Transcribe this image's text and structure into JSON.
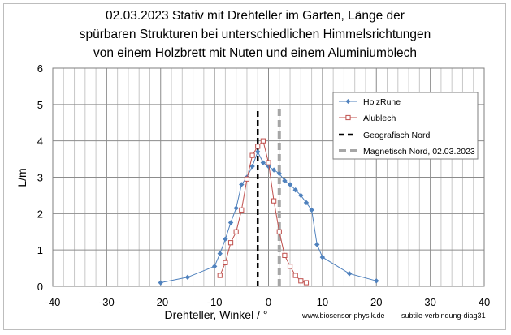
{
  "chart_data": {
    "type": "scatter",
    "title": [
      "02.03.2023  Stativ mit Drehteller im Garten, Länge der",
      "spürbaren Strukturen bei unterschiedlichen Himmelsrichtungen",
      "von einem Holzbrett mit Nuten und einem Aluminiumblech"
    ],
    "xlabel": "Drehteller, Winkel / °",
    "ylabel": "L/m",
    "xlim": [
      -40,
      40
    ],
    "ylim": [
      0,
      6
    ],
    "x_ticks": [
      -40,
      -30,
      -20,
      -10,
      0,
      10,
      20,
      30,
      40
    ],
    "y_ticks": [
      0,
      1,
      2,
      3,
      4,
      5,
      6
    ],
    "grid": true,
    "legend_position": "top-right",
    "series": [
      {
        "name": "HolzRune",
        "color": "#4f81bd",
        "marker": "diamond",
        "points": [
          [
            -20,
            0.1
          ],
          [
            -15,
            0.25
          ],
          [
            -10,
            0.55
          ],
          [
            -9,
            0.9
          ],
          [
            -8,
            1.3
          ],
          [
            -7,
            1.75
          ],
          [
            -6,
            2.15
          ],
          [
            -5,
            2.8
          ],
          [
            -4,
            3.0
          ],
          [
            -3,
            3.3
          ],
          [
            -2,
            3.7
          ],
          [
            -1,
            3.4
          ],
          [
            0,
            3.3
          ],
          [
            1,
            3.2
          ],
          [
            2,
            3.1
          ],
          [
            3,
            2.9
          ],
          [
            4,
            2.8
          ],
          [
            5,
            2.65
          ],
          [
            6,
            2.5
          ],
          [
            7,
            2.3
          ],
          [
            8,
            2.1
          ],
          [
            9,
            1.15
          ],
          [
            10,
            0.8
          ],
          [
            15,
            0.35
          ],
          [
            20,
            0.15
          ]
        ]
      },
      {
        "name": "Alublech",
        "color": "#c0504d",
        "marker": "square",
        "points": [
          [
            -9,
            0.3
          ],
          [
            -8,
            0.65
          ],
          [
            -7,
            1.2
          ],
          [
            -6,
            1.5
          ],
          [
            -5,
            2.1
          ],
          [
            -4,
            2.95
          ],
          [
            -3,
            3.6
          ],
          [
            -2,
            3.85
          ],
          [
            -1,
            4.0
          ],
          [
            0,
            3.4
          ],
          [
            1,
            2.35
          ],
          [
            2,
            1.5
          ],
          [
            3,
            0.85
          ],
          [
            4,
            0.55
          ],
          [
            5,
            0.3
          ],
          [
            6,
            0.15
          ],
          [
            7,
            0.1
          ]
        ]
      }
    ],
    "reference_lines": [
      {
        "name": "Geografisch Nord",
        "x": -2,
        "y_range": [
          0,
          4.9
        ],
        "color": "#000000",
        "style": "dashed"
      },
      {
        "name": "Magnetisch Nord, 02.03.2023",
        "x": 2,
        "y_range": [
          0,
          5.0
        ],
        "color": "#a6a6a6",
        "style": "dashed"
      }
    ],
    "annotations": [
      "www.biosensor-physik.de",
      "subtile-verbindung-diag31"
    ]
  }
}
